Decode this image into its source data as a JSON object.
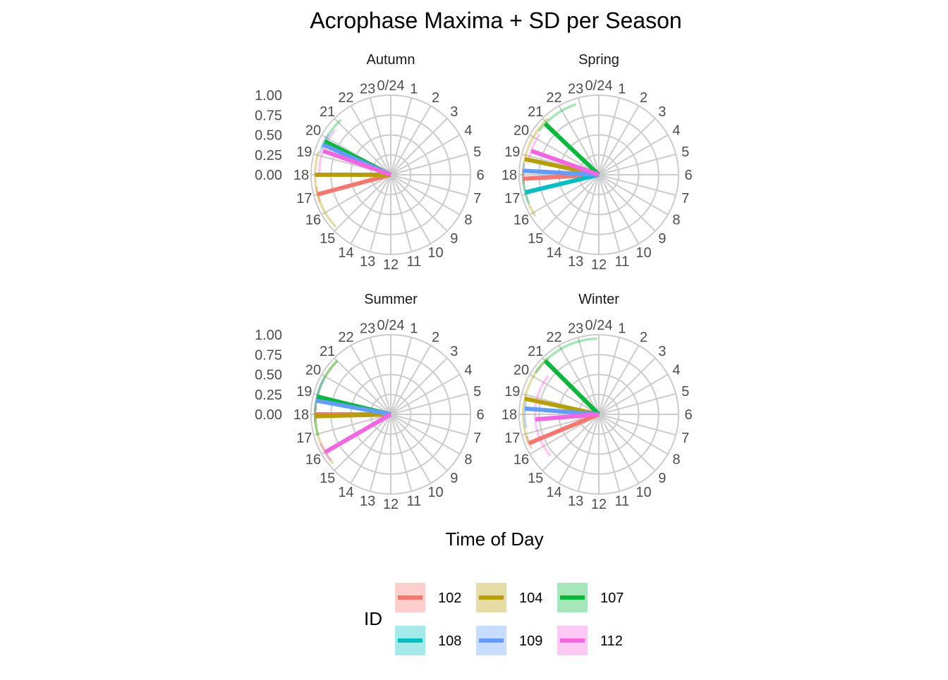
{
  "chart_data": {
    "type": "polar-segment",
    "title": "Acrophase Maxima + SD per Season",
    "xlabel": "Time of Day",
    "ylabel": "",
    "ylim": [
      0,
      1
    ],
    "radial_ticks": [
      "0.00",
      "0.25",
      "0.50",
      "0.75",
      "1.00"
    ],
    "hour_ticks": [
      "0/24",
      "1",
      "2",
      "3",
      "4",
      "5",
      "6",
      "7",
      "8",
      "9",
      "10",
      "11",
      "12",
      "13",
      "14",
      "15",
      "16",
      "17",
      "18",
      "19",
      "20",
      "21",
      "22",
      "23"
    ],
    "grid": true,
    "legend": {
      "title": "ID",
      "position": "bottom",
      "items": [
        {
          "id": "102",
          "color": "#F8766D"
        },
        {
          "id": "104",
          "color": "#B79F00"
        },
        {
          "id": "107",
          "color": "#00BA38"
        },
        {
          "id": "108",
          "color": "#00BFC4"
        },
        {
          "id": "109",
          "color": "#619CFF"
        },
        {
          "id": "112",
          "color": "#F564E3"
        }
      ]
    },
    "panels": [
      {
        "title": "Autumn",
        "series": [
          {
            "id": "102",
            "acrophase": 17.0,
            "value": 0.95,
            "sd": [
              16.6,
              17.4
            ]
          },
          {
            "id": "104",
            "acrophase": 18.0,
            "value": 0.95,
            "sd": [
              15.1,
              19.2
            ]
          },
          {
            "id": "107",
            "acrophase": 19.8,
            "value": 0.93,
            "sd": [
              19.4,
              21.2
            ]
          },
          {
            "id": "109",
            "acrophase": 19.6,
            "value": 0.93,
            "sd": [
              19.1,
              20.2
            ]
          },
          {
            "id": "112",
            "acrophase": 19.3,
            "value": 0.9,
            "sd": [
              17.9,
              20.6
            ]
          }
        ]
      },
      {
        "title": "Spring",
        "series": [
          {
            "id": "102",
            "acrophase": 17.8,
            "value": 0.95,
            "sd": [
              17.5,
              18.3
            ]
          },
          {
            "id": "104",
            "acrophase": 18.8,
            "value": 0.95,
            "sd": [
              15.8,
              21.2
            ]
          },
          {
            "id": "107",
            "acrophase": 20.9,
            "value": 0.93,
            "sd": [
              20.4,
              22.8
            ]
          },
          {
            "id": "108",
            "acrophase": 17.1,
            "value": 0.95,
            "sd": [
              16.5,
              17.8
            ]
          },
          {
            "id": "109",
            "acrophase": 18.2,
            "value": 0.95,
            "sd": [
              17.8,
              18.6
            ]
          },
          {
            "id": "112",
            "acrophase": 19.3,
            "value": 0.9,
            "sd": [
              18.6,
              20.3
            ]
          }
        ]
      },
      {
        "title": "Summer",
        "series": [
          {
            "id": "102",
            "acrophase": 18.0,
            "value": 0.95,
            "sd": [
              17.6,
              18.4
            ]
          },
          {
            "id": "104",
            "acrophase": 17.9,
            "value": 0.95,
            "sd": [
              15.3,
              21.0
            ]
          },
          {
            "id": "107",
            "acrophase": 18.9,
            "value": 0.95,
            "sd": [
              16.9,
              21.0
            ]
          },
          {
            "id": "109",
            "acrophase": 18.7,
            "value": 0.95,
            "sd": [
              18.2,
              19.9
            ]
          },
          {
            "id": "112",
            "acrophase": 16.0,
            "value": 0.95,
            "sd": [
              15.5,
              16.5
            ]
          }
        ]
      },
      {
        "title": "Winter",
        "series": [
          {
            "id": "102",
            "acrophase": 16.5,
            "value": 0.95,
            "sd": [
              16.2,
              16.9
            ]
          },
          {
            "id": "104",
            "acrophase": 18.8,
            "value": 0.95,
            "sd": [
              16.5,
              21.2
            ]
          },
          {
            "id": "107",
            "acrophase": 21.0,
            "value": 0.95,
            "sd": [
              20.2,
              23.9
            ]
          },
          {
            "id": "109",
            "acrophase": 18.3,
            "value": 0.93,
            "sd": [
              17.3,
              18.9
            ]
          },
          {
            "id": "112",
            "acrophase": 17.7,
            "value": 0.8,
            "sd": [
              15.3,
              20.5
            ]
          }
        ]
      }
    ]
  }
}
